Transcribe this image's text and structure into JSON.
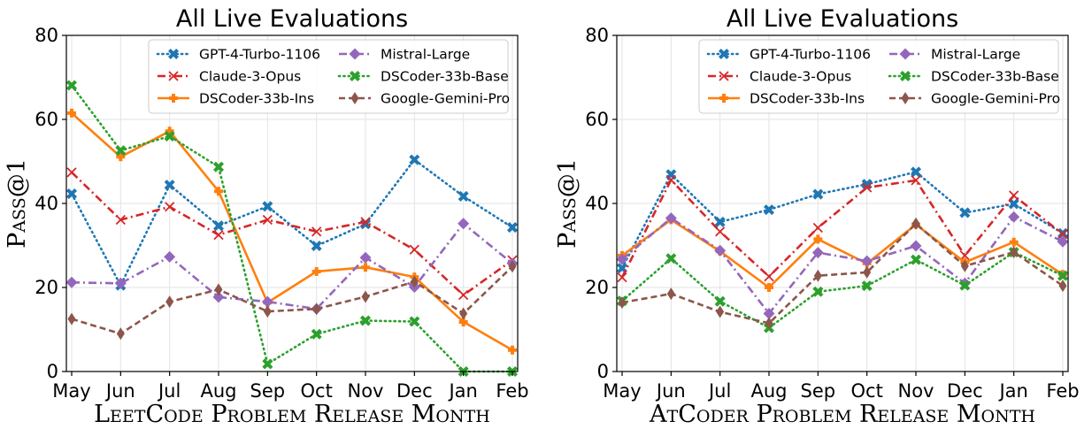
{
  "chart_data": [
    {
      "type": "line",
      "title": "All Live Evaluations",
      "ylabel": "Pass@1",
      "xlabel": "LeetCode Problem Release Month",
      "categories": [
        "May",
        "Jun",
        "Jul",
        "Aug",
        "Sep",
        "Oct",
        "Nov",
        "Dec",
        "Jan",
        "Feb"
      ],
      "yticks": [
        0,
        20,
        40,
        60,
        80
      ],
      "ylim": [
        0,
        80
      ],
      "grid": true,
      "legend": "top-right",
      "series": [
        {
          "name": "GPT-4-Turbo-1106",
          "color": "#1f77b4",
          "dash": "dotted",
          "marker": "x-filled",
          "values": [
            42.3,
            20.5,
            44.4,
            34.7,
            39.3,
            29.9,
            35.1,
            50.4,
            41.7,
            34.3
          ]
        },
        {
          "name": "Claude-3-Opus",
          "color": "#d62728",
          "dash": "dashdot",
          "marker": "x",
          "values": [
            47.4,
            36.1,
            39.2,
            32.5,
            36.1,
            33.3,
            35.6,
            29.0,
            18.2,
            26.5
          ]
        },
        {
          "name": "DSCoder-33b-Ins",
          "color": "#ff7f0e",
          "dash": "solid",
          "marker": "plus-filled",
          "values": [
            61.5,
            51.1,
            57.2,
            42.9,
            16.4,
            23.8,
            24.8,
            22.5,
            11.8,
            5.1
          ]
        },
        {
          "name": "Mistral-Large",
          "color": "#9467bd",
          "dash": "dashdot",
          "marker": "diamond",
          "values": [
            21.2,
            21.0,
            27.3,
            17.7,
            16.6,
            14.9,
            27.1,
            20.1,
            35.2,
            25.7
          ]
        },
        {
          "name": "DSCoder-33b-Base",
          "color": "#2ca02c",
          "dash": "dotted",
          "marker": "x-filled",
          "values": [
            68.1,
            52.6,
            56.0,
            48.7,
            1.8,
            8.9,
            12.1,
            11.9,
            0.0,
            0.0
          ]
        },
        {
          "name": "Google-Gemini-Pro",
          "color": "#8c564b",
          "dash": "dashed",
          "marker": "thin-diamond",
          "values": [
            12.5,
            9.0,
            16.6,
            19.5,
            14.3,
            14.9,
            17.8,
            21.4,
            13.8,
            25.0
          ]
        }
      ]
    },
    {
      "type": "line",
      "title": "All Live Evaluations",
      "ylabel": "Pass@1",
      "xlabel": "AtCoder Problem Release Month",
      "categories": [
        "May",
        "Jun",
        "Jul",
        "Aug",
        "Sep",
        "Oct",
        "Nov",
        "Dec",
        "Jan",
        "Feb"
      ],
      "yticks": [
        0,
        20,
        40,
        60,
        80
      ],
      "ylim": [
        0,
        80
      ],
      "grid": true,
      "legend": "top-right",
      "series": [
        {
          "name": "GPT-4-Turbo-1106",
          "color": "#1f77b4",
          "dash": "dotted",
          "marker": "x-filled",
          "values": [
            24.6,
            46.9,
            35.6,
            38.5,
            42.2,
            44.6,
            47.5,
            37.8,
            39.9,
            32.9
          ]
        },
        {
          "name": "Claude-3-Opus",
          "color": "#d62728",
          "dash": "dashdot",
          "marker": "x",
          "values": [
            22.4,
            45.6,
            33.3,
            22.6,
            34.2,
            43.8,
            45.5,
            27.6,
            41.9,
            32.7
          ]
        },
        {
          "name": "DSCoder-33b-Ins",
          "color": "#ff7f0e",
          "dash": "solid",
          "marker": "plus-filled",
          "values": [
            27.6,
            36.1,
            28.6,
            20.0,
            31.5,
            25.7,
            35.0,
            26.0,
            30.8,
            23.1
          ]
        },
        {
          "name": "Mistral-Large",
          "color": "#9467bd",
          "dash": "dashdot",
          "marker": "diamond",
          "values": [
            26.7,
            36.5,
            28.8,
            13.8,
            28.3,
            26.3,
            29.9,
            21.0,
            36.8,
            30.9
          ]
        },
        {
          "name": "DSCoder-33b-Base",
          "color": "#2ca02c",
          "dash": "dotted",
          "marker": "x-filled",
          "values": [
            16.8,
            26.9,
            16.7,
            10.4,
            19.0,
            20.4,
            26.6,
            20.5,
            28.4,
            22.8
          ]
        },
        {
          "name": "Google-Gemini-Pro",
          "color": "#8c564b",
          "dash": "dashed",
          "marker": "thin-diamond",
          "values": [
            16.4,
            18.5,
            14.2,
            11.5,
            22.8,
            23.6,
            35.2,
            25.1,
            28.4,
            20.4
          ]
        }
      ]
    }
  ]
}
